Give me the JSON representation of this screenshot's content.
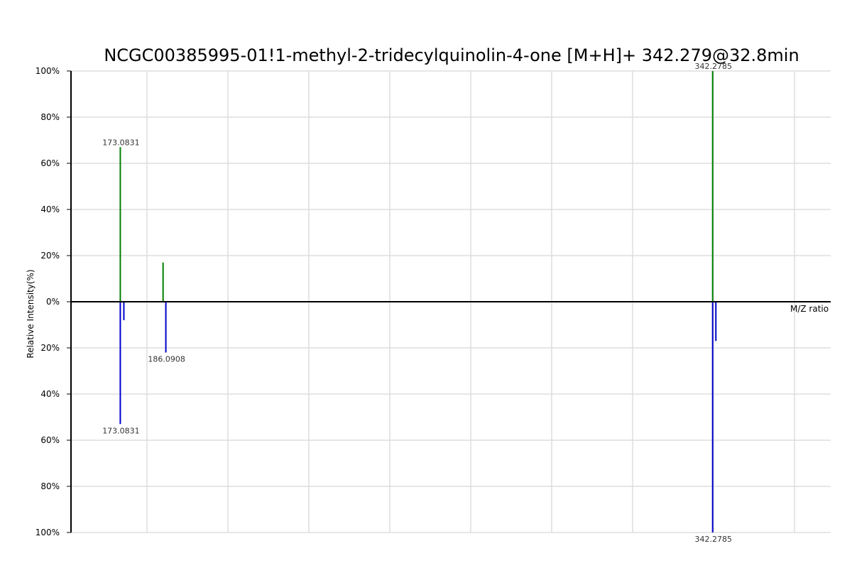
{
  "chart_data": {
    "type": "bar",
    "title": "NCGC00385995-01!1-methyl-2-tridecylquinolin-4-one [M+H]+ 342.279@32.8min",
    "xlabel": "M/Z ratio",
    "ylabel": "Relative Intensity(%)",
    "y_ticks_top": [
      "100%",
      "80%",
      "60%",
      "40%",
      "20%",
      "0%"
    ],
    "y_ticks_bottom": [
      "20%",
      "40%",
      "60%",
      "80%",
      "100%"
    ],
    "ylim": [
      -100,
      100
    ],
    "xlim": [
      159,
      376
    ],
    "grid": true,
    "colors": {
      "top": "#008000",
      "bottom": "#0000cc",
      "grid": "#dddddd",
      "axis": "#000000"
    },
    "series": [
      {
        "name": "top",
        "peaks": [
          {
            "mz": 173.0831,
            "intensity": 67,
            "label": "173.0831"
          },
          {
            "mz": 185.3,
            "intensity": 17,
            "label": ""
          },
          {
            "mz": 342.2785,
            "intensity": 100,
            "label": "342.2785"
          }
        ]
      },
      {
        "name": "bottom",
        "peaks": [
          {
            "mz": 173.0831,
            "intensity": 53,
            "label": "173.0831"
          },
          {
            "mz": 174.1,
            "intensity": 8,
            "label": ""
          },
          {
            "mz": 186.0908,
            "intensity": 22,
            "label": "186.0908"
          },
          {
            "mz": 342.2785,
            "intensity": 100,
            "label": "342.2785"
          },
          {
            "mz": 343.2,
            "intensity": 17,
            "label": ""
          }
        ]
      }
    ]
  }
}
